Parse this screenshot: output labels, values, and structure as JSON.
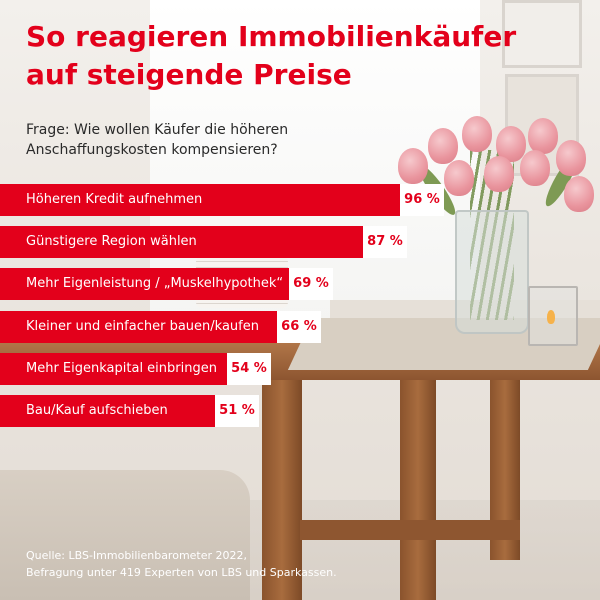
{
  "title": {
    "line1": "So reagieren Immobilienkäufer",
    "line2": "auf steigende Preise"
  },
  "question": {
    "line1": "Frage: Wie wollen Käufer die höheren",
    "line2": "Anschaffungskosten kompensieren?"
  },
  "chart_data": {
    "type": "bar",
    "orientation": "horizontal",
    "categories": [
      "Höheren Kredit aufnehmen",
      "Günstigere Region wählen",
      "Mehr Eigenleistung / „Muskelhypothek“",
      "Kleiner und einfacher bauen/kaufen",
      "Mehr Eigenkapital einbringen",
      "Bau/Kauf aufschieben"
    ],
    "values": [
      96,
      87,
      69,
      66,
      54,
      51
    ],
    "value_labels": [
      "96 %",
      "87 %",
      "69 %",
      "66 %",
      "54 %",
      "51 %"
    ],
    "unit": "%",
    "xlim": [
      0,
      100
    ],
    "grid": false,
    "legend": "none"
  },
  "source": {
    "line1": "Quelle: LBS-Immobilienbarometer 2022,",
    "line2": "Befragung unter 419 Experten von LBS und Sparkassen."
  },
  "colors": {
    "accent": "#e3001b",
    "bar_text": "#ffffff",
    "value_box": "#ffffff",
    "question_text": "#2a2a2a"
  }
}
